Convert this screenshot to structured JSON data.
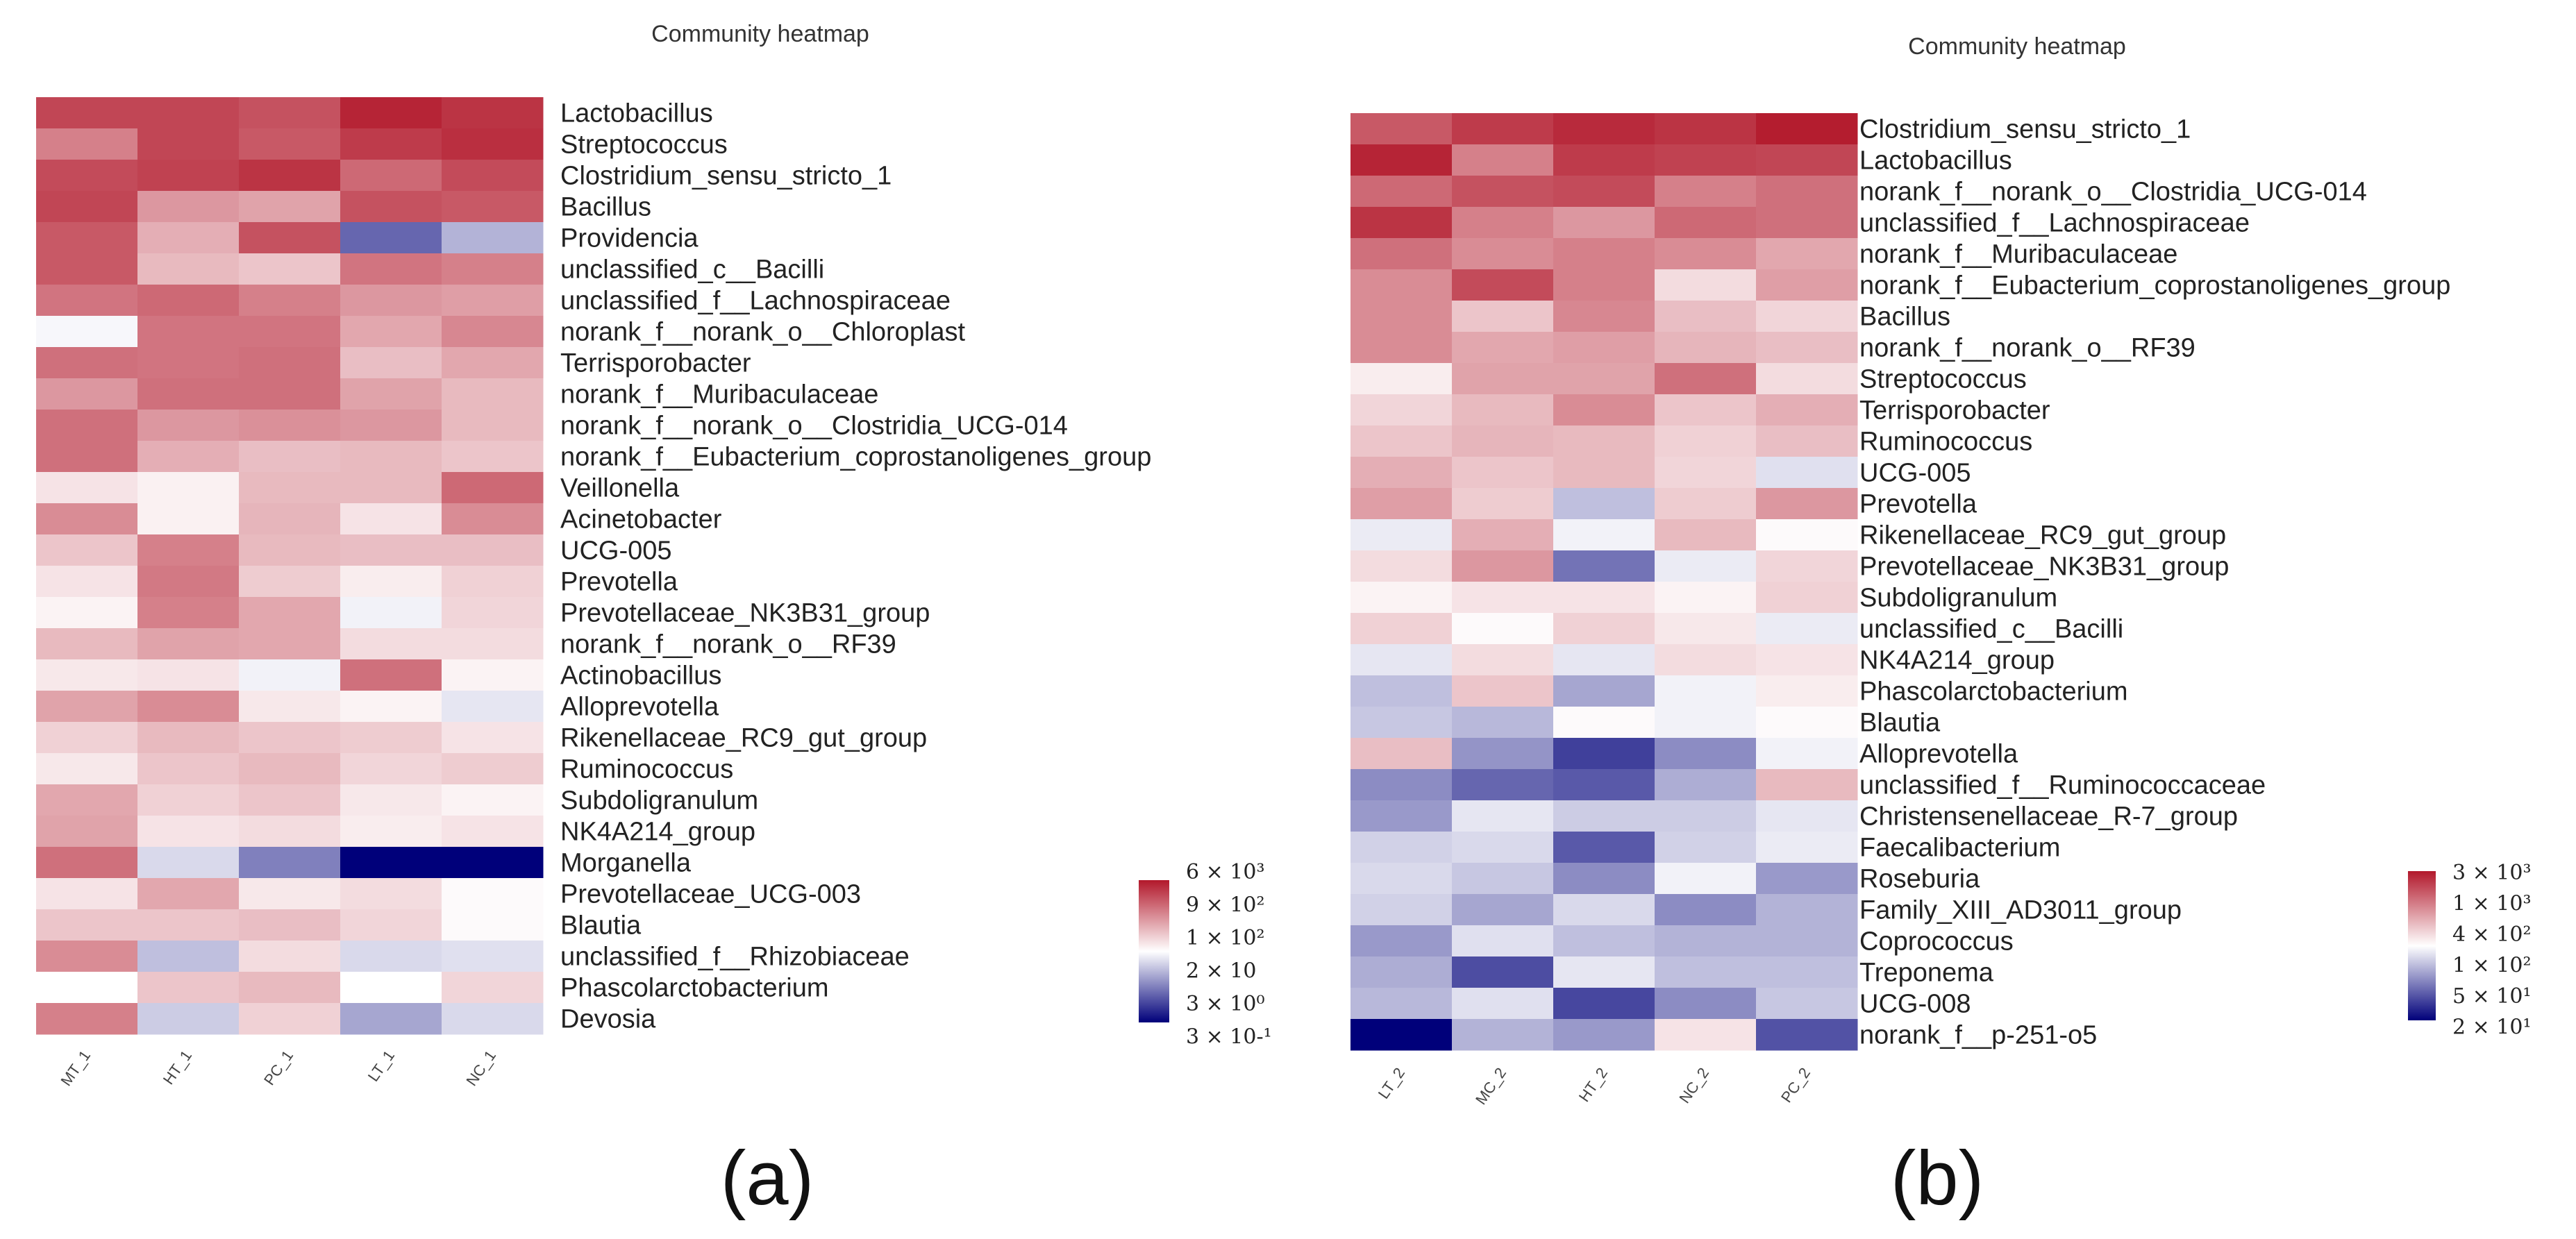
{
  "colors": {
    "low": "#00007a",
    "mid": "#ffffff",
    "high": "#b2182b"
  },
  "chart_data": [
    {
      "type": "heatmap",
      "title": "Community heatmap",
      "panel_label": "(a)",
      "columns": [
        "MT_1",
        "HT_1",
        "PC_1",
        "LT_1",
        "NC_1"
      ],
      "rows": [
        "Lactobacillus",
        "Streptococcus",
        "Clostridium_sensu_stricto_1",
        "Bacillus",
        "Providencia",
        "unclassified_c__Bacilli",
        "unclassified_f__Lachnospiraceae",
        "norank_f__norank_o__Chloroplast",
        "Terrisporobacter",
        "norank_f__Muribaculaceae",
        "norank_f__norank_o__Clostridia_UCG-014",
        "norank_f__Eubacterium_coprostanoligenes_group",
        "Veillonella",
        "Acinetobacter",
        "UCG-005",
        "Prevotella",
        "Prevotellaceae_NK3B31_group",
        "norank_f__norank_o__RF39",
        "Actinobacillus",
        "Alloprevotella",
        "Rikenellaceae_RC9_gut_group",
        "Ruminococcus",
        "Subdoligranulum",
        "NK4A214_group",
        "Morganella",
        "Prevotellaceae_UCG-003",
        "Blautia",
        "unclassified_f__Rhizobiaceae",
        "Phascolarctobacterium",
        "Devosia"
      ],
      "values": [
        [
          0.8,
          0.8,
          0.75,
          0.95,
          0.88
        ],
        [
          0.55,
          0.8,
          0.72,
          0.85,
          0.9
        ],
        [
          0.78,
          0.82,
          0.88,
          0.65,
          0.78
        ],
        [
          0.8,
          0.45,
          0.4,
          0.75,
          0.72
        ],
        [
          0.72,
          0.35,
          0.75,
          -0.6,
          -0.3
        ],
        [
          0.72,
          0.3,
          0.25,
          0.6,
          0.55
        ],
        [
          0.6,
          0.65,
          0.55,
          0.45,
          0.42
        ],
        [
          -0.03,
          0.6,
          0.6,
          0.38,
          0.52
        ],
        [
          0.62,
          0.6,
          0.62,
          0.28,
          0.38
        ],
        [
          0.45,
          0.62,
          0.62,
          0.4,
          0.3
        ],
        [
          0.62,
          0.45,
          0.48,
          0.45,
          0.3
        ],
        [
          0.62,
          0.35,
          0.28,
          0.3,
          0.25
        ],
        [
          0.12,
          0.06,
          0.3,
          0.3,
          0.65
        ],
        [
          0.5,
          0.06,
          0.32,
          0.12,
          0.5
        ],
        [
          0.25,
          0.55,
          0.3,
          0.28,
          0.28
        ],
        [
          0.12,
          0.58,
          0.22,
          0.08,
          0.2
        ],
        [
          0.05,
          0.55,
          0.38,
          -0.05,
          0.18
        ],
        [
          0.3,
          0.4,
          0.38,
          0.15,
          0.15
        ],
        [
          0.1,
          0.12,
          -0.05,
          0.62,
          0.05
        ],
        [
          0.4,
          0.5,
          0.1,
          0.05,
          -0.1
        ],
        [
          0.2,
          0.3,
          0.25,
          0.22,
          0.12
        ],
        [
          0.1,
          0.25,
          0.3,
          0.18,
          0.22
        ],
        [
          0.38,
          0.2,
          0.25,
          0.1,
          0.05
        ],
        [
          0.4,
          0.12,
          0.15,
          0.08,
          0.12
        ],
        [
          0.62,
          -0.15,
          -0.5,
          -1.0,
          -1.0
        ],
        [
          0.12,
          0.38,
          0.1,
          0.15,
          0.02
        ],
        [
          0.25,
          0.25,
          0.28,
          0.18,
          0.02
        ],
        [
          0.5,
          -0.25,
          0.15,
          -0.15,
          -0.12
        ],
        [
          0.0,
          0.25,
          0.3,
          0.0,
          0.18
        ],
        [
          0.55,
          -0.2,
          0.2,
          -0.35,
          -0.15
        ]
      ],
      "legend_ticks": [
        "6 × 10³",
        "9 × 10²",
        "1 × 10²",
        "2 × 10",
        "3 × 10⁰",
        "3 × 10-¹"
      ]
    },
    {
      "type": "heatmap",
      "title": "Community heatmap",
      "panel_label": "(b)",
      "columns": [
        "LT_2",
        "MC_2",
        "HT_2",
        "NC_2",
        "PC_2"
      ],
      "rows": [
        "Clostridium_sensu_stricto_1",
        "Lactobacillus",
        "norank_f__norank_o__Clostridia_UCG-014",
        "unclassified_f__Lachnospiraceae",
        "norank_f__Muribaculaceae",
        "norank_f__Eubacterium_coprostanoligenes_group",
        "Bacillus",
        "norank_f__norank_o__RF39",
        "Streptococcus",
        "Terrisporobacter",
        "Ruminococcus",
        "UCG-005",
        "Prevotella",
        "Rikenellaceae_RC9_gut_group",
        "Prevotellaceae_NK3B31_group",
        "Subdoligranulum",
        "unclassified_c__Bacilli",
        "NK4A214_group",
        "Phascolarctobacterium",
        "Blautia",
        "Alloprevotella",
        "unclassified_f__Ruminococcaceae",
        "Christensenellaceae_R-7_group",
        "Faecalibacterium",
        "Roseburia",
        "Family_XIII_AD3011_group",
        "Coprococcus",
        "Treponema",
        "UCG-008",
        "norank_f__p-251-o5"
      ],
      "values": [
        [
          0.72,
          0.85,
          0.92,
          0.88,
          0.98
        ],
        [
          0.95,
          0.55,
          0.85,
          0.82,
          0.8
        ],
        [
          0.65,
          0.75,
          0.78,
          0.55,
          0.62
        ],
        [
          0.88,
          0.55,
          0.45,
          0.65,
          0.62
        ],
        [
          0.62,
          0.5,
          0.55,
          0.5,
          0.38
        ],
        [
          0.5,
          0.78,
          0.55,
          0.15,
          0.42
        ],
        [
          0.5,
          0.25,
          0.52,
          0.28,
          0.18
        ],
        [
          0.5,
          0.38,
          0.42,
          0.32,
          0.28
        ],
        [
          0.08,
          0.4,
          0.4,
          0.62,
          0.15
        ],
        [
          0.18,
          0.3,
          0.5,
          0.25,
          0.35
        ],
        [
          0.25,
          0.32,
          0.3,
          0.2,
          0.28
        ],
        [
          0.35,
          0.25,
          0.3,
          0.18,
          -0.12
        ],
        [
          0.42,
          0.22,
          -0.25,
          0.22,
          0.45
        ],
        [
          -0.08,
          0.35,
          -0.05,
          0.3,
          0.02
        ],
        [
          0.15,
          0.45,
          -0.55,
          -0.08,
          0.18
        ],
        [
          0.05,
          0.12,
          0.12,
          0.05,
          0.2
        ],
        [
          0.2,
          0.02,
          0.2,
          0.1,
          -0.08
        ],
        [
          -0.1,
          0.15,
          -0.1,
          0.15,
          0.12
        ],
        [
          -0.25,
          0.25,
          -0.35,
          -0.05,
          0.08
        ],
        [
          -0.22,
          -0.28,
          0.02,
          -0.05,
          0.02
        ],
        [
          0.28,
          -0.42,
          -0.75,
          -0.45,
          -0.05
        ],
        [
          -0.45,
          -0.6,
          -0.65,
          -0.32,
          0.3
        ],
        [
          -0.4,
          -0.1,
          -0.2,
          -0.2,
          -0.1
        ],
        [
          -0.18,
          -0.15,
          -0.65,
          -0.18,
          -0.08
        ],
        [
          -0.15,
          -0.22,
          -0.45,
          -0.05,
          -0.4
        ],
        [
          -0.18,
          -0.35,
          -0.15,
          -0.45,
          -0.3
        ],
        [
          -0.4,
          -0.12,
          -0.25,
          -0.3,
          -0.3
        ],
        [
          -0.32,
          -0.7,
          -0.1,
          -0.25,
          -0.25
        ],
        [
          -0.28,
          -0.12,
          -0.72,
          -0.45,
          -0.22
        ],
        [
          -1.0,
          -0.3,
          -0.4,
          0.12,
          -0.68
        ]
      ],
      "legend_ticks": [
        "3 × 10³",
        "1 × 10³",
        "4 × 10²",
        "1 × 10²",
        "5 × 10¹",
        "2 × 10¹"
      ]
    }
  ]
}
